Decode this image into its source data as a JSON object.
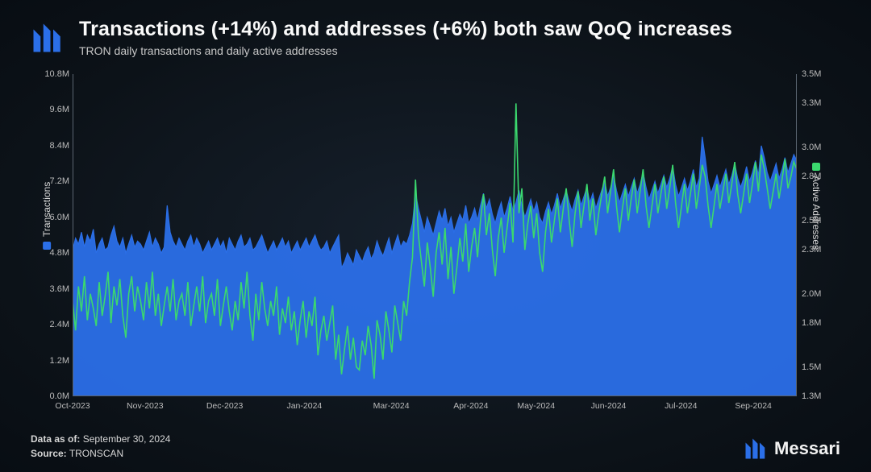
{
  "header": {
    "title": "Transactions (+14%) and addresses (+6%) both saw QoQ increases",
    "subtitle": "TRON daily transactions and daily active addresses"
  },
  "brand": {
    "name": "Messari",
    "logo_color": "#2b6fe8"
  },
  "footer": {
    "data_as_of_label": "Data as of:",
    "data_as_of_value": "September 30, 2024",
    "source_label": "Source:",
    "source_value": "TRONSCAN"
  },
  "chart": {
    "type": "dual-axis-area-line",
    "background_color": "transparent",
    "axis_color": "#5a6470",
    "tick_font_size": 11,
    "tick_color": "#bcbcbc",
    "y_left": {
      "label": "Transactions",
      "legend_color": "#2b6fe8",
      "min": 0,
      "max": 10800000,
      "ticks": [
        {
          "v": 0,
          "label": "0.0M"
        },
        {
          "v": 1200000,
          "label": "1.2M"
        },
        {
          "v": 2400000,
          "label": "2.4M"
        },
        {
          "v": 3600000,
          "label": "3.6M"
        },
        {
          "v": 4800000,
          "label": "4.8M"
        },
        {
          "v": 6000000,
          "label": "6.0M"
        },
        {
          "v": 7200000,
          "label": "7.2M"
        },
        {
          "v": 8400000,
          "label": "8.4M"
        },
        {
          "v": 9600000,
          "label": "9.6M"
        },
        {
          "v": 10800000,
          "label": "10.8M"
        }
      ]
    },
    "y_right": {
      "label": "Active Addresses",
      "legend_color": "#3bd86e",
      "min": 1300000,
      "max": 3500000,
      "ticks": [
        {
          "v": 1300000,
          "label": "1.3M"
        },
        {
          "v": 1500000,
          "label": "1.5M"
        },
        {
          "v": 1800000,
          "label": "1.8M"
        },
        {
          "v": 2000000,
          "label": "2.0M"
        },
        {
          "v": 2300000,
          "label": "2.3M"
        },
        {
          "v": 2500000,
          "label": "2.5M"
        },
        {
          "v": 2800000,
          "label": "2.8M"
        },
        {
          "v": 3000000,
          "label": "3.0M"
        },
        {
          "v": 3300000,
          "label": "3.3M"
        },
        {
          "v": 3500000,
          "label": "3.5M"
        }
      ]
    },
    "x": {
      "ticks": [
        {
          "pos": 0.0,
          "label": "Oct-2023"
        },
        {
          "pos": 0.1,
          "label": "Nov-2023"
        },
        {
          "pos": 0.21,
          "label": "Dec-2023"
        },
        {
          "pos": 0.32,
          "label": "Jan-2024"
        },
        {
          "pos": 0.44,
          "label": "Mar-2024"
        },
        {
          "pos": 0.55,
          "label": "Apr-2024"
        },
        {
          "pos": 0.64,
          "label": "May-2024"
        },
        {
          "pos": 0.74,
          "label": "Jun-2024"
        },
        {
          "pos": 0.84,
          "label": "Jul-2024"
        },
        {
          "pos": 0.94,
          "label": "Sep-2024"
        }
      ]
    },
    "series_transactions": {
      "color": "#2b6fe8",
      "fill_opacity": 0.95,
      "line_width": 1.2,
      "values": [
        4.9,
        5.3,
        5.1,
        5.5,
        5.0,
        5.4,
        5.2,
        5.6,
        4.8,
        5.1,
        5.3,
        4.9,
        5.0,
        5.4,
        5.7,
        5.2,
        5.0,
        5.3,
        4.8,
        5.1,
        5.4,
        5.0,
        5.2,
        5.1,
        4.9,
        5.2,
        5.5,
        5.0,
        5.3,
        5.1,
        4.8,
        5.0,
        6.4,
        5.5,
        5.2,
        5.0,
        5.3,
        5.1,
        4.9,
        5.2,
        5.4,
        5.0,
        5.3,
        5.1,
        4.8,
        5.0,
        5.2,
        4.9,
        5.1,
        5.3,
        5.0,
        5.2,
        4.8,
        5.3,
        5.1,
        4.9,
        5.2,
        5.4,
        5.0,
        5.1,
        5.3,
        4.9,
        5.0,
        5.2,
        5.4,
        5.1,
        4.8,
        5.0,
        5.2,
        4.9,
        5.1,
        5.3,
        5.0,
        5.2,
        4.8,
        5.0,
        5.2,
        4.9,
        5.1,
        5.3,
        5.0,
        5.2,
        5.4,
        5.1,
        4.9,
        5.0,
        5.2,
        4.8,
        5.0,
        5.2,
        5.4,
        4.3,
        4.5,
        4.8,
        4.6,
        4.4,
        4.9,
        4.7,
        4.5,
        4.8,
        5.0,
        4.6,
        4.8,
        5.2,
        4.9,
        4.7,
        5.0,
        5.3,
        4.8,
        5.1,
        5.4,
        5.0,
        5.2,
        5.1,
        5.4,
        5.8,
        6.8,
        6.3,
        5.9,
        5.5,
        6.0,
        5.7,
        5.4,
        5.8,
        6.2,
        5.9,
        6.3,
        5.7,
        6.0,
        5.5,
        5.8,
        6.1,
        5.9,
        6.4,
        5.8,
        6.0,
        6.3,
        5.9,
        6.4,
        6.8,
        6.3,
        6.6,
        6.1,
        5.8,
        6.2,
        6.5,
        6.0,
        6.3,
        6.7,
        6.2,
        6.5,
        6.9,
        6.4,
        6.0,
        6.3,
        6.6,
        6.2,
        6.5,
        6.0,
        5.8,
        6.2,
        6.5,
        6.1,
        6.4,
        6.8,
        6.3,
        6.6,
        6.9,
        6.5,
        6.2,
        6.6,
        6.9,
        6.4,
        6.7,
        7.0,
        6.5,
        6.8,
        6.3,
        6.6,
        6.9,
        7.2,
        6.7,
        7.0,
        7.4,
        6.9,
        6.5,
        6.8,
        7.1,
        6.7,
        7.0,
        7.3,
        6.8,
        7.1,
        7.5,
        7.0,
        6.6,
        6.9,
        7.2,
        6.8,
        7.1,
        7.4,
        7.0,
        7.3,
        7.7,
        7.1,
        6.7,
        7.0,
        7.3,
        6.9,
        7.2,
        7.6,
        7.0,
        7.3,
        8.7,
        8.0,
        7.2,
        6.8,
        7.1,
        7.4,
        7.0,
        7.3,
        7.6,
        7.1,
        7.4,
        7.8,
        7.3,
        7.0,
        7.3,
        7.7,
        7.2,
        7.5,
        7.9,
        7.4,
        8.4,
        8.0,
        7.5,
        7.2,
        7.5,
        7.8,
        7.3,
        7.6,
        8.0,
        7.5,
        7.8,
        8.1,
        7.9
      ]
    },
    "series_addresses": {
      "color": "#3bd86e",
      "line_width": 1.6,
      "values": [
        1.95,
        1.75,
        2.05,
        1.88,
        2.12,
        1.82,
        2.0,
        1.9,
        1.78,
        2.08,
        1.85,
        1.98,
        2.15,
        1.8,
        2.05,
        1.92,
        2.1,
        1.85,
        1.7,
        2.0,
        2.12,
        1.88,
        2.05,
        1.95,
        1.82,
        2.08,
        1.9,
        2.15,
        1.85,
        2.0,
        1.78,
        1.92,
        2.05,
        1.88,
        2.1,
        1.82,
        1.95,
        2.0,
        1.85,
        2.08,
        1.78,
        1.92,
        2.05,
        1.88,
        2.12,
        1.8,
        1.95,
        2.0,
        1.85,
        2.1,
        1.78,
        1.92,
        2.05,
        1.88,
        1.75,
        1.95,
        1.82,
        2.08,
        1.9,
        2.15,
        1.85,
        1.68,
        2.0,
        1.82,
        2.08,
        1.9,
        1.78,
        1.95,
        1.85,
        2.05,
        1.72,
        1.9,
        1.8,
        1.98,
        1.75,
        1.88,
        1.65,
        1.82,
        1.95,
        1.7,
        1.88,
        1.78,
        1.98,
        1.58,
        1.75,
        1.85,
        1.68,
        1.8,
        1.92,
        1.55,
        1.72,
        1.45,
        1.62,
        1.78,
        1.55,
        1.7,
        1.5,
        1.48,
        1.68,
        1.58,
        1.78,
        1.65,
        1.42,
        1.82,
        1.72,
        1.55,
        1.88,
        1.75,
        1.6,
        1.92,
        1.8,
        1.68,
        1.95,
        1.85,
        2.08,
        2.25,
        2.78,
        2.4,
        2.22,
        2.05,
        2.35,
        2.18,
        1.98,
        2.28,
        2.42,
        2.2,
        2.45,
        2.1,
        2.32,
        2.0,
        2.18,
        2.38,
        2.22,
        2.48,
        2.15,
        2.32,
        2.45,
        2.25,
        2.5,
        2.68,
        2.4,
        2.55,
        2.3,
        2.12,
        2.38,
        2.52,
        2.28,
        2.45,
        2.62,
        2.35,
        3.3,
        2.55,
        2.72,
        2.3,
        2.48,
        2.6,
        2.38,
        2.55,
        2.28,
        2.15,
        2.42,
        2.58,
        2.35,
        2.5,
        2.65,
        2.42,
        2.58,
        2.72,
        2.5,
        2.32,
        2.55,
        2.7,
        2.45,
        2.6,
        2.75,
        2.5,
        2.65,
        2.4,
        2.55,
        2.68,
        2.8,
        2.55,
        2.7,
        2.85,
        2.6,
        2.42,
        2.58,
        2.72,
        2.5,
        2.65,
        2.78,
        2.55,
        2.7,
        2.85,
        2.6,
        2.45,
        2.6,
        2.75,
        2.55,
        2.68,
        2.8,
        2.58,
        2.72,
        2.88,
        2.62,
        2.45,
        2.6,
        2.75,
        2.55,
        2.68,
        2.82,
        2.58,
        2.72,
        2.88,
        2.8,
        2.6,
        2.45,
        2.6,
        2.75,
        2.58,
        2.7,
        2.82,
        2.62,
        2.75,
        2.9,
        2.68,
        2.55,
        2.68,
        2.82,
        2.62,
        2.75,
        2.9,
        2.7,
        2.95,
        2.85,
        2.72,
        2.58,
        2.7,
        2.82,
        2.65,
        2.78,
        2.92,
        2.72,
        2.8,
        2.9,
        2.85
      ]
    }
  }
}
